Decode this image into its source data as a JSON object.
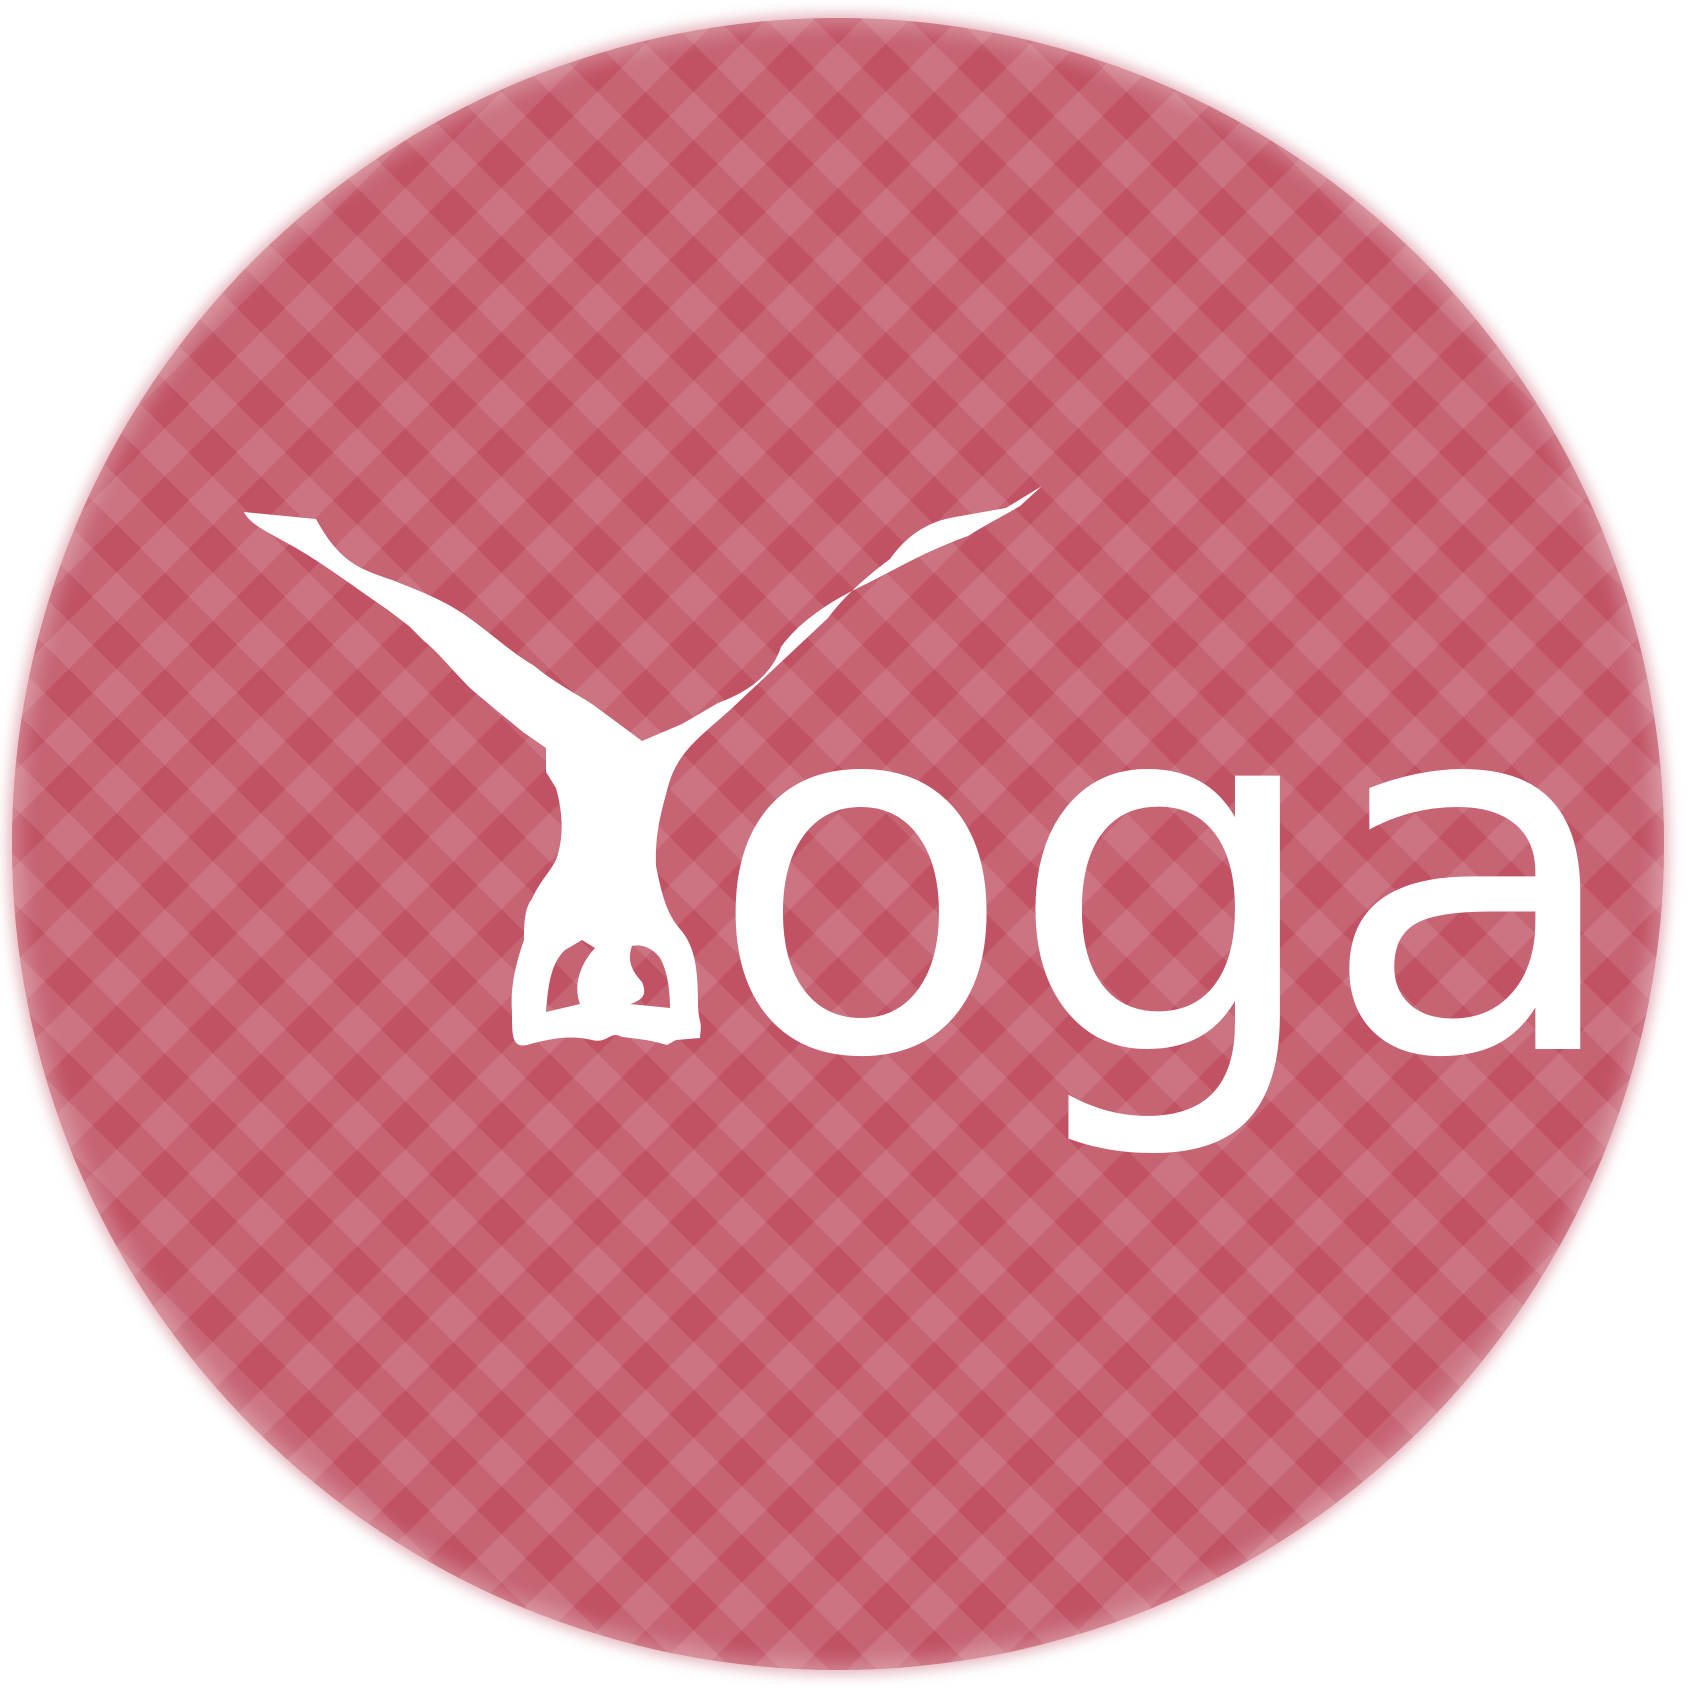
{
  "logo": {
    "word": "oga",
    "full_word": "Yoga",
    "icon": "headstand-figure-icon",
    "colors": {
      "badge": "#c05264",
      "text": "#ffffff",
      "background": "#ffffff"
    }
  }
}
